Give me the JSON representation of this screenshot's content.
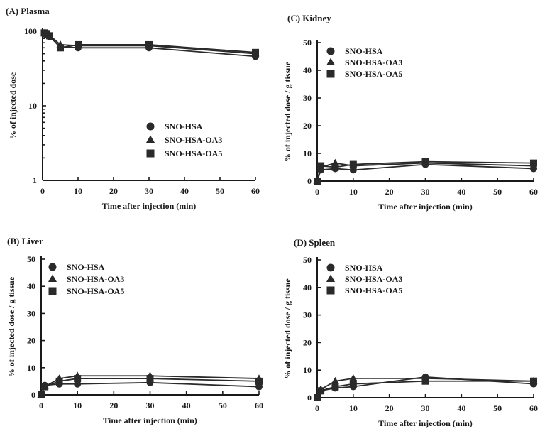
{
  "chart_data": [
    {
      "id": "A",
      "type": "line",
      "title": "(A) Plasma",
      "xlabel": "Time after injection (min)",
      "ylabel": "% of injected dose",
      "xlim": [
        0,
        60
      ],
      "ylim": [
        1,
        100
      ],
      "yscale": "log",
      "xticks": [
        0,
        10,
        20,
        30,
        40,
        50,
        60
      ],
      "yticks": [
        1,
        10,
        100
      ],
      "legend_position": "lower-right",
      "series": [
        {
          "name": "SNO-HSA",
          "marker": "circle",
          "x": [
            0.5,
            1,
            2,
            5,
            10,
            30,
            60
          ],
          "y": [
            92,
            90,
            84,
            62,
            60,
            60,
            46
          ]
        },
        {
          "name": "SNO-HSA-OA3",
          "marker": "triangle",
          "x": [
            0.5,
            1,
            2,
            5,
            10,
            30,
            60
          ],
          "y": [
            94,
            92,
            88,
            66,
            64,
            64,
            50
          ]
        },
        {
          "name": "SNO-HSA-OA5",
          "marker": "square",
          "x": [
            0.5,
            1,
            2,
            5,
            10,
            30,
            60
          ],
          "y": [
            95,
            93,
            87,
            60,
            66,
            66,
            52
          ]
        }
      ]
    },
    {
      "id": "C",
      "type": "line",
      "title": "(C) Kidney",
      "xlabel": "Time after injection (min)",
      "ylabel": "% of injected dose / g tissue",
      "xlim": [
        0,
        60
      ],
      "ylim": [
        0,
        50
      ],
      "yscale": "linear",
      "xticks": [
        0,
        10,
        20,
        30,
        40,
        50,
        60
      ],
      "yticks": [
        0,
        10,
        20,
        30,
        40,
        50
      ],
      "legend_position": "top-left",
      "series": [
        {
          "name": "SNO-HSA",
          "marker": "circle",
          "x": [
            0,
            1,
            5,
            10,
            30,
            60
          ],
          "y": [
            0,
            4,
            4.5,
            4,
            6,
            4.5
          ]
        },
        {
          "name": "SNO-HSA-OA3",
          "marker": "triangle",
          "x": [
            0,
            1,
            5,
            10,
            30,
            60
          ],
          "y": [
            0,
            5,
            6.5,
            5.5,
            6.5,
            5.5
          ]
        },
        {
          "name": "SNO-HSA-OA5",
          "marker": "square",
          "x": [
            0,
            1,
            5,
            10,
            30,
            60
          ],
          "y": [
            0,
            5.5,
            5,
            6,
            7,
            6.5
          ]
        }
      ]
    },
    {
      "id": "B",
      "type": "line",
      "title": "(B) Liver",
      "xlabel": "Time after injection (min)",
      "ylabel": "% of injected dose / g tissue",
      "xlim": [
        0,
        60
      ],
      "ylim": [
        0,
        50
      ],
      "yscale": "linear",
      "xticks": [
        0,
        10,
        20,
        30,
        40,
        50,
        60
      ],
      "yticks": [
        0,
        10,
        20,
        30,
        40,
        50
      ],
      "legend_position": "top-left",
      "series": [
        {
          "name": "SNO-HSA",
          "marker": "circle",
          "x": [
            0,
            1,
            5,
            10,
            30,
            60
          ],
          "y": [
            0,
            3.5,
            4,
            4,
            4.5,
            3
          ]
        },
        {
          "name": "SNO-HSA-OA3",
          "marker": "triangle",
          "x": [
            0,
            1,
            5,
            10,
            30,
            60
          ],
          "y": [
            0,
            3,
            6,
            7,
            7,
            6
          ]
        },
        {
          "name": "SNO-HSA-OA5",
          "marker": "square",
          "x": [
            0,
            1,
            5,
            10,
            30,
            60
          ],
          "y": [
            0,
            3,
            5,
            6,
            6,
            5
          ]
        }
      ]
    },
    {
      "id": "D",
      "type": "line",
      "title": "(D) Spleen",
      "xlabel": "Time after injection (min)",
      "ylabel": "% of injected dose / g tissue",
      "xlim": [
        0,
        60
      ],
      "ylim": [
        0,
        50
      ],
      "yscale": "linear",
      "xticks": [
        0,
        10,
        20,
        30,
        40,
        50,
        60
      ],
      "yticks": [
        0,
        10,
        20,
        30,
        40,
        50
      ],
      "legend_position": "top-left",
      "series": [
        {
          "name": "SNO-HSA",
          "marker": "circle",
          "x": [
            0,
            1,
            5,
            10,
            30,
            60
          ],
          "y": [
            0,
            2.5,
            3.5,
            4,
            7.5,
            5
          ]
        },
        {
          "name": "SNO-HSA-OA3",
          "marker": "triangle",
          "x": [
            0,
            1,
            5,
            10,
            30,
            60
          ],
          "y": [
            0,
            3,
            6,
            7,
            7,
            6
          ]
        },
        {
          "name": "SNO-HSA-OA5",
          "marker": "square",
          "x": [
            0,
            1,
            5,
            10,
            30,
            60
          ],
          "y": [
            0,
            2.5,
            4,
            5,
            6,
            6
          ]
        }
      ]
    }
  ]
}
